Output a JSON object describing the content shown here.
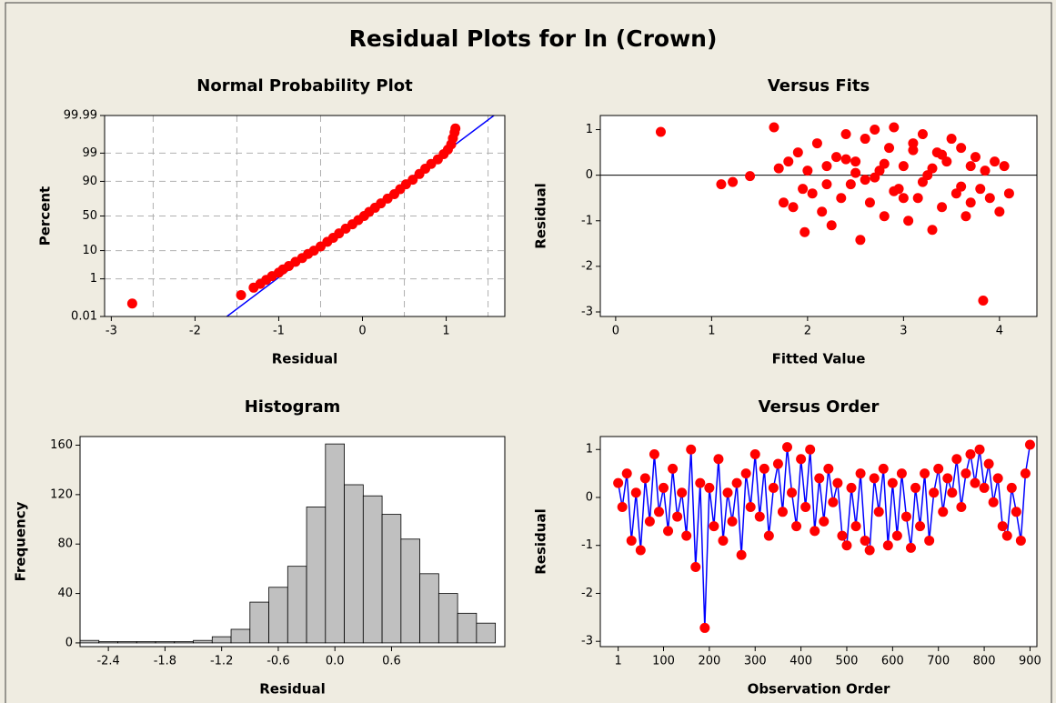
{
  "title": "Residual Plots for ln (Crown)",
  "chart_data": [
    {
      "type": "scatter",
      "title": "Normal Probability Plot",
      "xlabel": "Residual",
      "ylabel": "Percent",
      "yscale": "probability",
      "color": "#ff0000",
      "x": [
        -2.75,
        -1.45,
        -1.3,
        -1.22,
        -1.15,
        -1.08,
        -1.0,
        -0.95,
        -0.88,
        -0.8,
        -0.72,
        -0.65,
        -0.58,
        -0.5,
        -0.42,
        -0.35,
        -0.28,
        -0.2,
        -0.12,
        -0.05,
        0.02,
        0.08,
        0.15,
        0.22,
        0.3,
        0.38,
        0.45,
        0.52,
        0.6,
        0.68,
        0.75,
        0.82,
        0.9,
        0.97,
        1.02,
        1.06,
        1.08,
        1.1,
        1.11
      ],
      "y": [
        0.06,
        0.17,
        0.4,
        0.6,
        0.9,
        1.3,
        1.8,
        2.4,
        3.2,
        4.5,
        6,
        8,
        10,
        13,
        17,
        21,
        26,
        32,
        38,
        44,
        50,
        56,
        62,
        68,
        74,
        79,
        84,
        88,
        91,
        94,
        96,
        97.3,
        98.2,
        98.9,
        99.3,
        99.6,
        99.8,
        99.9,
        99.94
      ],
      "fit_line": {
        "x": [
          -1.62,
          1.57
        ],
        "y": [
          0.01,
          99.99
        ],
        "color": "#0000ff"
      },
      "xlim": [
        -3.08,
        1.7
      ],
      "xticks": [
        -3,
        -2,
        -1,
        0,
        1
      ],
      "xgrid": [
        -2.5,
        -1.5,
        -0.5,
        0.5,
        1.5
      ],
      "ylim": [
        0.01,
        99.99
      ],
      "yticks": [
        0.01,
        1,
        10,
        50,
        90,
        99,
        99.99
      ],
      "grid": true
    },
    {
      "type": "scatter",
      "title": "Versus Fits",
      "xlabel": "Fitted Value",
      "ylabel": "Residual",
      "color": "#ff0000",
      "x": [
        0.47,
        1.1,
        1.22,
        1.4,
        1.65,
        1.7,
        1.75,
        1.8,
        1.85,
        1.9,
        1.95,
        1.97,
        2.0,
        2.05,
        2.1,
        2.15,
        2.2,
        2.25,
        2.3,
        2.35,
        2.4,
        2.45,
        2.5,
        2.55,
        2.6,
        2.65,
        2.7,
        2.75,
        2.8,
        2.85,
        2.9,
        2.95,
        3.0,
        3.05,
        3.1,
        3.15,
        3.2,
        3.25,
        3.3,
        3.35,
        3.4,
        3.45,
        3.5,
        3.55,
        3.6,
        3.65,
        3.7,
        3.75,
        3.8,
        3.83,
        3.85,
        3.9,
        3.95,
        4.0,
        4.05,
        4.1,
        2.2,
        2.4,
        2.6,
        2.8,
        3.0,
        3.2,
        3.4,
        3.6,
        2.5,
        2.9,
        3.3,
        3.7,
        2.7,
        3.1
      ],
      "y": [
        0.95,
        -0.2,
        -0.15,
        -0.02,
        1.05,
        0.15,
        -0.6,
        0.3,
        -0.7,
        0.5,
        -0.3,
        -1.25,
        0.1,
        -0.4,
        0.7,
        -0.8,
        0.2,
        -1.1,
        0.4,
        -0.5,
        0.9,
        -0.2,
        0.3,
        -1.42,
        0.8,
        -0.6,
        1.0,
        0.1,
        -0.9,
        0.6,
        1.05,
        -0.3,
        0.2,
        -1.0,
        0.7,
        -0.5,
        0.9,
        0.0,
        -1.2,
        0.5,
        -0.7,
        0.3,
        0.8,
        -0.4,
        0.6,
        -0.9,
        0.2,
        0.4,
        -0.3,
        -2.75,
        0.1,
        -0.5,
        0.3,
        -0.8,
        0.2,
        -0.4,
        -0.2,
        0.35,
        -0.1,
        0.25,
        -0.5,
        -0.15,
        0.45,
        -0.25,
        0.05,
        -0.35,
        0.15,
        -0.6,
        -0.05,
        0.55
      ],
      "reference_line": 0,
      "xlim": [
        -0.16,
        4.39
      ],
      "xticks": [
        0,
        1,
        2,
        3,
        4
      ],
      "ylim": [
        -3.1,
        1.31
      ],
      "yticks": [
        -3,
        -2,
        -1,
        0,
        1
      ]
    },
    {
      "type": "histogram",
      "title": "Histogram",
      "xlabel": "Residual",
      "ylabel": "Frequency",
      "color": "#c0c0c0",
      "bins": [
        -2.7,
        -2.5,
        -2.3,
        -2.1,
        -1.9,
        -1.7,
        -1.5,
        -1.3,
        -1.1,
        -0.9,
        -0.7,
        -0.5,
        -0.3,
        -0.1,
        0.1,
        0.3,
        0.5,
        0.7,
        0.9,
        1.1,
        1.3,
        1.5,
        1.7
      ],
      "counts": [
        2,
        1,
        1,
        1,
        1,
        1,
        2,
        5,
        11,
        33,
        45,
        62,
        110,
        161,
        128,
        119,
        104,
        84,
        56,
        40,
        24,
        16
      ],
      "xlim": [
        -2.7,
        1.8
      ],
      "xticks": [
        -2.4,
        -1.8,
        -1.2,
        -0.6,
        {
          "value": 0,
          "label": "0.0"
        },
        0.6
      ],
      "ylim": [
        -3,
        167
      ],
      "yticks": [
        0,
        40,
        80,
        120,
        160
      ]
    },
    {
      "type": "line",
      "title": "Versus Order",
      "xlabel": "Observation Order",
      "ylabel": "Residual",
      "color": "#0000ff",
      "marker_color": "#ff0000",
      "x": [
        1,
        10,
        20,
        30,
        40,
        50,
        60,
        70,
        80,
        90,
        100,
        110,
        120,
        130,
        140,
        150,
        160,
        170,
        180,
        190,
        200,
        210,
        220,
        230,
        240,
        250,
        260,
        270,
        280,
        290,
        300,
        310,
        320,
        330,
        340,
        350,
        360,
        370,
        380,
        390,
        400,
        410,
        420,
        430,
        440,
        450,
        460,
        470,
        480,
        490,
        500,
        510,
        520,
        530,
        540,
        550,
        560,
        570,
        580,
        590,
        600,
        610,
        620,
        630,
        640,
        650,
        660,
        670,
        680,
        690,
        700,
        710,
        720,
        730,
        740,
        750,
        760,
        770,
        780,
        790,
        800,
        810,
        820,
        830,
        840,
        850,
        860,
        870,
        880,
        890,
        900
      ],
      "y": [
        0.3,
        -0.2,
        0.5,
        -0.9,
        0.1,
        -1.1,
        0.4,
        -0.5,
        0.9,
        -0.3,
        0.2,
        -0.7,
        0.6,
        -0.4,
        0.1,
        -0.8,
        1.0,
        -1.45,
        0.3,
        -2.72,
        0.2,
        -0.6,
        0.8,
        -0.9,
        0.1,
        -0.5,
        0.3,
        -1.2,
        0.5,
        -0.2,
        0.9,
        -0.4,
        0.6,
        -0.8,
        0.2,
        0.7,
        -0.3,
        1.05,
        0.1,
        -0.6,
        0.8,
        -0.2,
        1.0,
        -0.7,
        0.4,
        -0.5,
        0.6,
        -0.1,
        0.3,
        -0.8,
        -1.0,
        0.2,
        -0.6,
        0.5,
        -0.9,
        -1.1,
        0.4,
        -0.3,
        0.6,
        -1.0,
        0.3,
        -0.8,
        0.5,
        -0.4,
        -1.05,
        0.2,
        -0.6,
        0.5,
        -0.9,
        0.1,
        0.6,
        -0.3,
        0.4,
        0.1,
        0.8,
        -0.2,
        0.5,
        0.9,
        0.3,
        1.0,
        0.2,
        0.7,
        -0.1,
        0.4,
        -0.6,
        -0.8,
        0.2,
        -0.3,
        -0.9,
        0.5,
        1.1
      ],
      "xlim": [
        -38,
        915
      ],
      "xticks": [
        1,
        100,
        200,
        300,
        400,
        500,
        600,
        700,
        800,
        900
      ],
      "ylim": [
        -3.11,
        1.27
      ],
      "yticks": [
        -3,
        -2,
        -1,
        0,
        1
      ]
    }
  ]
}
